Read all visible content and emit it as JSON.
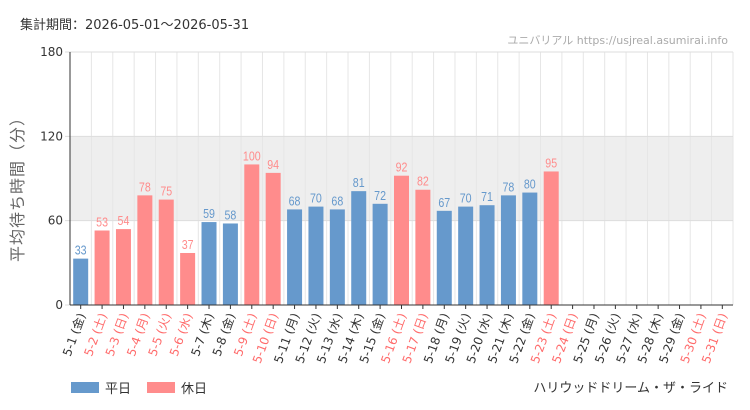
{
  "header": {
    "period": "集計期間：2026-05-01～2026-05-31",
    "source": "ユニバリアル https://usjreal.asumirai.info"
  },
  "footer": {
    "ride_name": "ハリウッドドリーム・ザ・ライド"
  },
  "colors": {
    "weekday": "#6699cc",
    "holiday": "#ff8c8c",
    "highlight_band": "#eeeeee"
  },
  "chart_data": {
    "type": "bar",
    "ylabel": "平均待ち時間（分）",
    "ylim": [
      0,
      180
    ],
    "yticks": [
      0,
      60,
      120,
      180
    ],
    "highlight_band": [
      60,
      120
    ],
    "grid": true,
    "legend_position": "bottom-left",
    "series": [
      {
        "name": "平日",
        "color": "#6699cc"
      },
      {
        "name": "休日",
        "color": "#ff8c8c"
      }
    ],
    "categories": [
      "5-1 (金)",
      "5-2 (土)",
      "5-3 (日)",
      "5-4 (月)",
      "5-5 (火)",
      "5-6 (水)",
      "5-7 (木)",
      "5-8 (金)",
      "5-9 (土)",
      "5-10 (日)",
      "5-11 (月)",
      "5-12 (火)",
      "5-13 (水)",
      "5-14 (木)",
      "5-15 (金)",
      "5-16 (土)",
      "5-17 (日)",
      "5-18 (月)",
      "5-19 (火)",
      "5-20 (水)",
      "5-21 (木)",
      "5-22 (金)",
      "5-23 (土)",
      "5-24 (日)",
      "5-25 (月)",
      "5-26 (火)",
      "5-27 (水)",
      "5-28 (木)",
      "5-29 (金)",
      "5-30 (土)",
      "5-31 (日)"
    ],
    "values": [
      33,
      53,
      54,
      78,
      75,
      37,
      59,
      58,
      100,
      94,
      68,
      70,
      68,
      81,
      72,
      92,
      82,
      67,
      70,
      71,
      78,
      80,
      95,
      null,
      null,
      null,
      null,
      null,
      null,
      null,
      null
    ],
    "day_type": [
      "weekday",
      "holiday",
      "holiday",
      "holiday",
      "holiday",
      "holiday",
      "weekday",
      "weekday",
      "holiday",
      "holiday",
      "weekday",
      "weekday",
      "weekday",
      "weekday",
      "weekday",
      "holiday",
      "holiday",
      "weekday",
      "weekday",
      "weekday",
      "weekday",
      "weekday",
      "holiday",
      "holiday",
      "weekday",
      "weekday",
      "weekday",
      "weekday",
      "weekday",
      "holiday",
      "holiday"
    ]
  }
}
